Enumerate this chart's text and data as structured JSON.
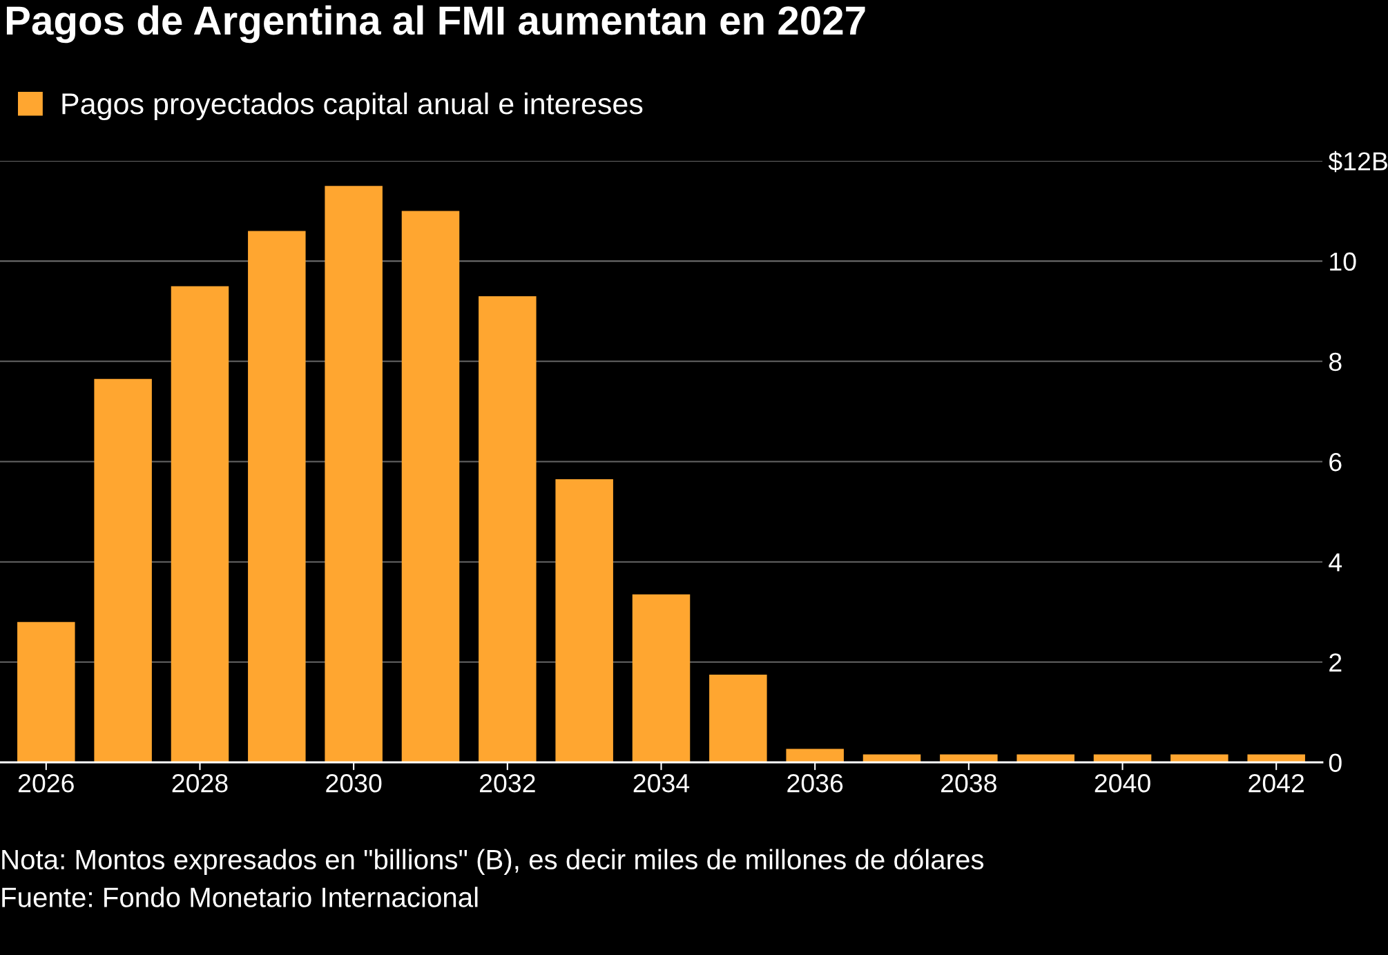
{
  "chart_data": {
    "type": "bar",
    "title": "Pagos de Argentina al FMI aumentan en 2027",
    "categories": [
      "2026",
      null,
      "2028",
      null,
      "2030",
      null,
      "2032",
      null,
      "2034",
      null,
      "2036",
      null,
      "2038",
      null,
      "2040",
      null,
      "2042"
    ],
    "series": [
      {
        "name": "Pagos proyectados capital anual e intereses",
        "color": "#ffa630",
        "values": [
          2.8,
          7.65,
          9.5,
          10.6,
          11.5,
          11.0,
          9.3,
          5.65,
          3.35,
          1.75,
          0.27,
          0.16,
          0.16,
          0.16,
          0.16,
          0.16,
          0.16
        ]
      }
    ],
    "ylim": [
      0,
      12
    ],
    "yticks": [
      0,
      2,
      4,
      6,
      8,
      10,
      {
        "value": 12,
        "label": "$12B"
      }
    ],
    "grid": "y",
    "legend": "top left",
    "annotations": [
      "Nota: Montos expresados en \"billions\" (B), es decir miles de millones de dólares",
      "Fuente: Fondo Monetario Internacional"
    ]
  }
}
